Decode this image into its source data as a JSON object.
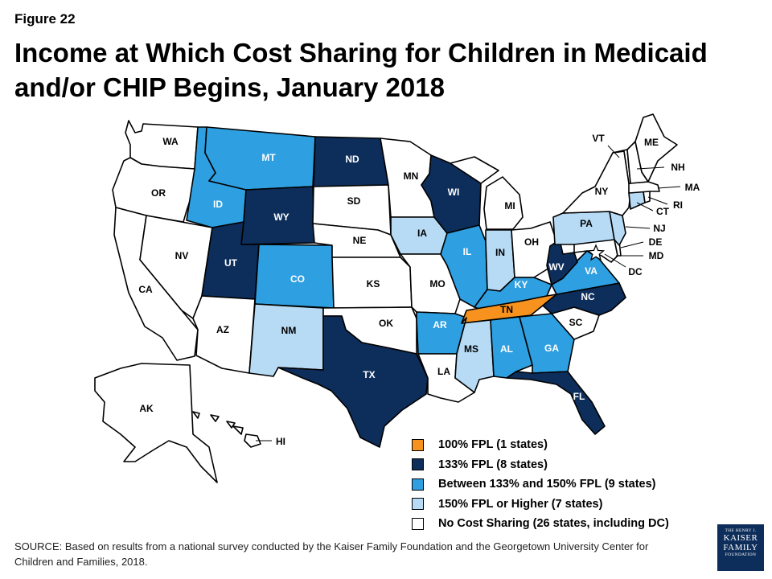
{
  "figure_label": "Figure 22",
  "title": "Income at Which Cost Sharing for Children in Medicaid and/or CHIP Begins, January 2018",
  "colors": {
    "fpl100": "#f7921e",
    "fpl133": "#0d2d5a",
    "between": "#2e9fe0",
    "higher": "#b7dbf5",
    "none": "#ffffff"
  },
  "legend": [
    {
      "key": "fpl100",
      "label": "100% FPL (1 states)"
    },
    {
      "key": "fpl133",
      "label": "133% FPL (8 states)"
    },
    {
      "key": "between",
      "label": "Between 133% and 150% FPL (9 states)"
    },
    {
      "key": "higher",
      "label": "150% FPL or Higher (7 states)"
    },
    {
      "key": "none",
      "label": "No Cost Sharing (26 states, including DC)"
    }
  ],
  "states": [
    {
      "abbr": "WA",
      "category": "none"
    },
    {
      "abbr": "OR",
      "category": "none"
    },
    {
      "abbr": "CA",
      "category": "none"
    },
    {
      "abbr": "NV",
      "category": "none"
    },
    {
      "abbr": "ID",
      "category": "between"
    },
    {
      "abbr": "MT",
      "category": "between"
    },
    {
      "abbr": "WY",
      "category": "fpl133"
    },
    {
      "abbr": "UT",
      "category": "fpl133"
    },
    {
      "abbr": "CO",
      "category": "between"
    },
    {
      "abbr": "AZ",
      "category": "none"
    },
    {
      "abbr": "NM",
      "category": "higher"
    },
    {
      "abbr": "ND",
      "category": "fpl133"
    },
    {
      "abbr": "SD",
      "category": "none"
    },
    {
      "abbr": "NE",
      "category": "none"
    },
    {
      "abbr": "KS",
      "category": "none"
    },
    {
      "abbr": "OK",
      "category": "none"
    },
    {
      "abbr": "TX",
      "category": "fpl133"
    },
    {
      "abbr": "MN",
      "category": "none"
    },
    {
      "abbr": "IA",
      "category": "higher"
    },
    {
      "abbr": "MO",
      "category": "none"
    },
    {
      "abbr": "AR",
      "category": "between"
    },
    {
      "abbr": "LA",
      "category": "none"
    },
    {
      "abbr": "WI",
      "category": "fpl133"
    },
    {
      "abbr": "IL",
      "category": "between"
    },
    {
      "abbr": "MI",
      "category": "none"
    },
    {
      "abbr": "IN",
      "category": "higher"
    },
    {
      "abbr": "OH",
      "category": "none"
    },
    {
      "abbr": "KY",
      "category": "between"
    },
    {
      "abbr": "TN",
      "category": "fpl100"
    },
    {
      "abbr": "MS",
      "category": "higher"
    },
    {
      "abbr": "AL",
      "category": "between"
    },
    {
      "abbr": "GA",
      "category": "between"
    },
    {
      "abbr": "FL",
      "category": "fpl133"
    },
    {
      "abbr": "SC",
      "category": "none"
    },
    {
      "abbr": "NC",
      "category": "fpl133"
    },
    {
      "abbr": "VA",
      "category": "between"
    },
    {
      "abbr": "WV",
      "category": "fpl133"
    },
    {
      "abbr": "PA",
      "category": "higher"
    },
    {
      "abbr": "NY",
      "category": "none"
    },
    {
      "abbr": "VT",
      "category": "none"
    },
    {
      "abbr": "ME",
      "category": "none"
    },
    {
      "abbr": "NH",
      "category": "none"
    },
    {
      "abbr": "MA",
      "category": "none"
    },
    {
      "abbr": "RI",
      "category": "none"
    },
    {
      "abbr": "CT",
      "category": "higher"
    },
    {
      "abbr": "NJ",
      "category": "higher"
    },
    {
      "abbr": "DE",
      "category": "none"
    },
    {
      "abbr": "MD",
      "category": "none"
    },
    {
      "abbr": "DC",
      "category": "none"
    },
    {
      "abbr": "AK",
      "category": "none"
    },
    {
      "abbr": "HI",
      "category": "none"
    }
  ],
  "source": "SOURCE: Based on results from a national survey conducted by the Kaiser Family Foundation and the Georgetown University Center for Children and Families, 2018.",
  "logo": {
    "line1": "THE HENRY J.",
    "line2": "KAISER",
    "line3": "FAMILY",
    "line4": "FOUNDATION"
  }
}
